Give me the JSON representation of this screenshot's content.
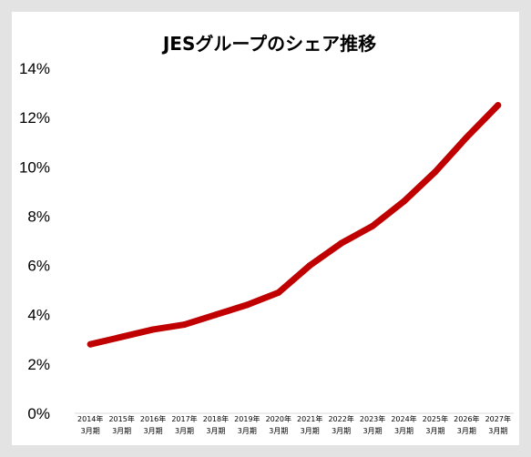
{
  "chart_data": {
    "type": "line",
    "title": "JESグループのシェア推移",
    "categories": [
      [
        "2014年",
        "3月期"
      ],
      [
        "2015年",
        "3月期"
      ],
      [
        "2016年",
        "3月期"
      ],
      [
        "2017年",
        "3月期"
      ],
      [
        "2018年",
        "3月期"
      ],
      [
        "2019年",
        "3月期"
      ],
      [
        "2020年",
        "3月期"
      ],
      [
        "2021年",
        "3月期"
      ],
      [
        "2022年",
        "3月期"
      ],
      [
        "2023年",
        "3月期"
      ],
      [
        "2024年",
        "3月期"
      ],
      [
        "2025年",
        "3月期"
      ],
      [
        "2026年",
        "3月期"
      ],
      [
        "2027年",
        "3月期"
      ]
    ],
    "series": [
      {
        "values": [
          2.8,
          3.1,
          3.4,
          3.6,
          4.0,
          4.4,
          4.9,
          6.0,
          6.9,
          7.6,
          8.6,
          9.8,
          11.2,
          12.5
        ]
      }
    ],
    "ylim": [
      0,
      14
    ],
    "yticks": [
      "0%",
      "2%",
      "4%",
      "6%",
      "8%",
      "10%",
      "12%",
      "14%"
    ],
    "line_color": "#c00000",
    "grid": false,
    "legend": "none"
  }
}
